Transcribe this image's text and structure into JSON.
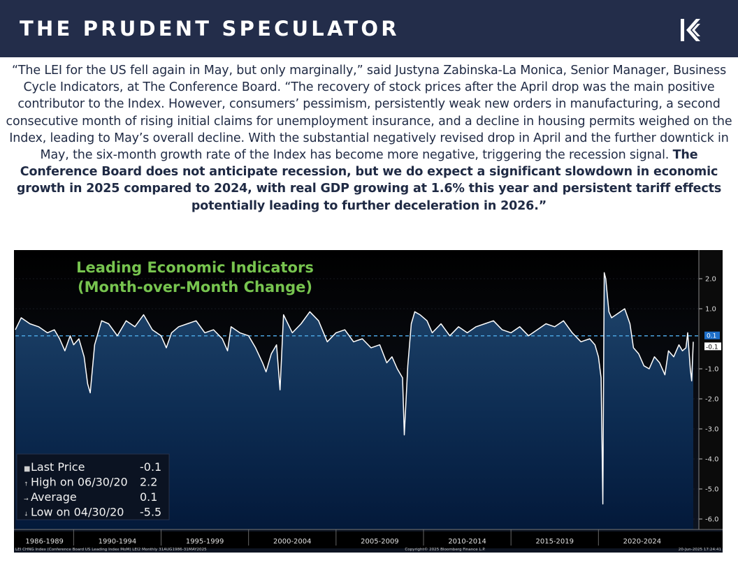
{
  "header": {
    "brand": "THE PRUDENT SPECULATOR"
  },
  "quote": {
    "regular": "“The LEI for the US fell again in May, but only marginally,” said Justyna Zabinska-La Monica, Senior Manager, Business Cycle Indicators, at The Conference Board. “The recovery of stock prices after the April drop was the main positive contributor to the Index. However, consumers’ pessimism, persistently weak new orders in manufacturing, a second consecutive month of rising initial claims for unemployment insurance, and a decline in housing permits weighed on the Index, leading to May’s overall decline. With the substantial negatively revised drop in April and the further downtick in May, the six-month growth rate of the Index has become more negative, triggering the recession signal.",
    "bold": "The Conference Board does not anticipate recession, but we do expect a significant slowdown in economic growth in 2025 compared to 2024, with real GDP growing at 1.6% this year and persistent tariff effects potentially leading to further deceleration in 2026.”"
  },
  "chart_data": {
    "type": "line",
    "title_line1": "Leading Economic Indicators",
    "title_line2": "(Month-over-Month Change)",
    "ylim": [
      -6.3,
      2.6
    ],
    "yticks": [
      "2.0",
      "1.0",
      "-1.0",
      "-2.0",
      "-3.0",
      "-4.0",
      "-5.0",
      "-6.0"
    ],
    "x_range": [
      1986.67,
      2025.42
    ],
    "periods": [
      "1986-1989",
      "1990-1994",
      "1995-1999",
      "2000-2004",
      "2005-2009",
      "2010-2014",
      "2015-2019",
      "2020-2024"
    ],
    "average": 0.1,
    "last_value_label": "-0.1",
    "average_label": "0.1",
    "legend": [
      {
        "marker": "■",
        "label": "Last Price",
        "value": "-0.1"
      },
      {
        "marker": "↑",
        "label": "High on 06/30/20",
        "value": "2.2"
      },
      {
        "marker": "→",
        "label": "Average",
        "value": "0.1"
      },
      {
        "marker": "↓",
        "label": "Low on 04/30/20",
        "value": "-5.5"
      }
    ],
    "footer_left": "LEI CHNG Index (Conference Board US Leading Index MoM) LEI2  Monthly 31AUG1986-31MAY2025",
    "footer_center": "Copyright© 2025 Bloomberg Finance L.P.",
    "footer_right": "20-Jun-2025 17:24:41",
    "series": [
      {
        "x": [
          1986.67,
          1987.0,
          1987.5,
          1988.0,
          1988.5,
          1988.9,
          1989.2,
          1989.5,
          1989.8,
          1990.0,
          1990.3,
          1990.6,
          1990.8,
          1990.95,
          1991.2,
          1991.6,
          1992.0,
          1992.5,
          1993.0,
          1993.5,
          1994.0,
          1994.5,
          1995.0,
          1995.3,
          1995.6,
          1996.0,
          1996.5,
          1997.0,
          1997.5,
          1998.0,
          1998.5,
          1998.8,
          1999.0,
          1999.5,
          2000.0,
          2000.4,
          2000.8,
          2001.0,
          2001.3,
          2001.6,
          2001.8,
          2002.0,
          2002.5,
          2003.0,
          2003.5,
          2004.0,
          2004.5,
          2005.0,
          2005.5,
          2006.0,
          2006.5,
          2007.0,
          2007.5,
          2007.9,
          2008.2,
          2008.5,
          2008.8,
          2008.9,
          2009.1,
          2009.3,
          2009.5,
          2009.8,
          2010.2,
          2010.5,
          2011.0,
          2011.5,
          2012.0,
          2012.5,
          2013.0,
          2013.5,
          2014.0,
          2014.5,
          2015.0,
          2015.5,
          2016.0,
          2016.5,
          2017.0,
          2017.5,
          2018.0,
          2018.5,
          2019.0,
          2019.5,
          2019.8,
          2020.0,
          2020.15,
          2020.25,
          2020.33,
          2020.42,
          2020.5,
          2020.6,
          2020.75,
          2021.0,
          2021.5,
          2021.8,
          2022.0,
          2022.3,
          2022.6,
          2022.9,
          2023.2,
          2023.5,
          2023.8,
          2024.0,
          2024.3,
          2024.6,
          2024.8,
          2025.0,
          2025.1,
          2025.25,
          2025.33,
          2025.42
        ],
        "values": [
          0.3,
          0.7,
          0.5,
          0.4,
          0.2,
          0.3,
          0.0,
          -0.4,
          0.1,
          -0.2,
          0.0,
          -0.6,
          -1.5,
          -1.8,
          -0.2,
          0.6,
          0.5,
          0.1,
          0.6,
          0.4,
          0.8,
          0.3,
          0.1,
          -0.3,
          0.2,
          0.4,
          0.5,
          0.6,
          0.2,
          0.3,
          0.0,
          -0.4,
          0.4,
          0.2,
          0.1,
          -0.3,
          -0.8,
          -1.1,
          -0.5,
          -0.2,
          -1.7,
          0.8,
          0.2,
          0.5,
          0.9,
          0.6,
          -0.1,
          0.2,
          0.3,
          -0.1,
          0.0,
          -0.3,
          -0.2,
          -0.8,
          -0.6,
          -1.0,
          -1.3,
          -3.2,
          -0.9,
          0.5,
          0.9,
          0.8,
          0.6,
          0.2,
          0.5,
          0.1,
          0.4,
          0.2,
          0.4,
          0.5,
          0.6,
          0.3,
          0.2,
          0.4,
          0.1,
          0.3,
          0.5,
          0.4,
          0.6,
          0.2,
          -0.1,
          0.0,
          -0.2,
          -0.6,
          -1.3,
          -5.5,
          2.2,
          2.0,
          1.5,
          0.9,
          0.7,
          0.8,
          1.0,
          0.5,
          -0.3,
          -0.5,
          -0.9,
          -1.0,
          -0.6,
          -0.8,
          -1.2,
          -0.4,
          -0.6,
          -0.2,
          -0.4,
          -0.3,
          0.2,
          -1.0,
          -1.4,
          -0.1
        ]
      }
    ]
  }
}
